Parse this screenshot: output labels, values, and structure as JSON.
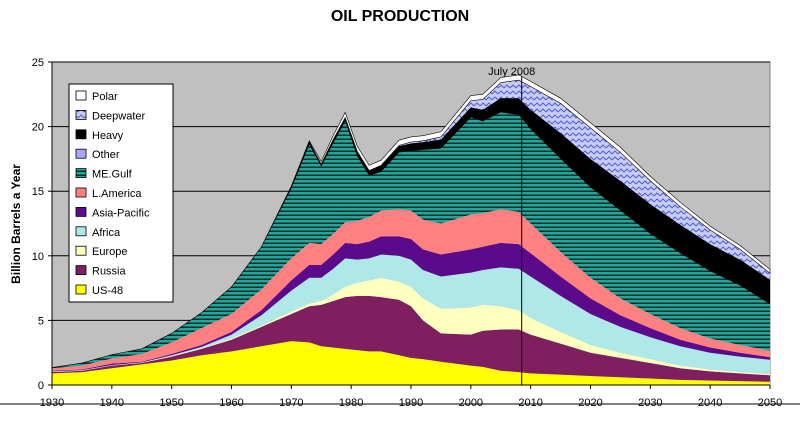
{
  "chart_data": {
    "type": "area",
    "title": "OIL PRODUCTION",
    "xlabel": "",
    "ylabel": "Billion Barrels a Year",
    "xlim": [
      1930,
      2050
    ],
    "ylim": [
      0,
      25
    ],
    "x_ticks": [
      1930,
      1940,
      1950,
      1960,
      1970,
      1980,
      1990,
      2000,
      2010,
      2020,
      2030,
      2040,
      2050
    ],
    "y_ticks": [
      0,
      5,
      10,
      15,
      20,
      25
    ],
    "grid": true,
    "stacked": true,
    "legend_position": "top-left",
    "annotation": {
      "label": "July 2008",
      "x": 2008.5
    },
    "x": [
      1930,
      1935,
      1940,
      1945,
      1950,
      1955,
      1960,
      1965,
      1970,
      1973,
      1975,
      1977,
      1979,
      1981,
      1983,
      1985,
      1988,
      1990,
      1992,
      1995,
      2000,
      2002,
      2005,
      2008,
      2010,
      2015,
      2020,
      2025,
      2030,
      2035,
      2040,
      2045,
      2050
    ],
    "series": [
      {
        "name": "US-48",
        "color": "#ffff00",
        "pattern": "solid",
        "values": [
          0.9,
          1.0,
          1.3,
          1.6,
          1.9,
          2.3,
          2.6,
          3.0,
          3.4,
          3.3,
          3.0,
          2.9,
          2.8,
          2.7,
          2.6,
          2.6,
          2.3,
          2.1,
          2.0,
          1.8,
          1.5,
          1.4,
          1.1,
          1.0,
          0.9,
          0.8,
          0.7,
          0.6,
          0.5,
          0.4,
          0.35,
          0.3,
          0.25
        ]
      },
      {
        "name": "Russia",
        "color": "#7f1f5f",
        "pattern": "solid",
        "values": [
          0.1,
          0.1,
          0.2,
          0.1,
          0.3,
          0.5,
          0.9,
          1.5,
          2.1,
          2.8,
          3.2,
          3.6,
          4.0,
          4.2,
          4.3,
          4.2,
          4.3,
          4.0,
          3.0,
          2.2,
          2.4,
          2.8,
          3.2,
          3.3,
          3.0,
          2.4,
          1.8,
          1.5,
          1.2,
          0.9,
          0.7,
          0.6,
          0.5
        ]
      },
      {
        "name": "Europe",
        "color": "#ffffc0",
        "pattern": "solid",
        "values": [
          0.0,
          0.0,
          0.0,
          0.0,
          0.05,
          0.05,
          0.1,
          0.1,
          0.2,
          0.2,
          0.3,
          0.5,
          0.8,
          1.0,
          1.2,
          1.5,
          1.4,
          1.5,
          1.7,
          1.9,
          2.1,
          2.0,
          1.8,
          1.5,
          1.3,
          0.9,
          0.6,
          0.4,
          0.3,
          0.2,
          0.15,
          0.1,
          0.1
        ]
      },
      {
        "name": "Africa",
        "color": "#aee8e8",
        "pattern": "solid",
        "values": [
          0.05,
          0.05,
          0.05,
          0.05,
          0.05,
          0.1,
          0.3,
          0.8,
          1.6,
          2.0,
          1.8,
          2.0,
          2.2,
          1.8,
          1.7,
          1.8,
          2.0,
          2.1,
          2.2,
          2.5,
          2.7,
          2.7,
          3.0,
          3.2,
          3.2,
          2.8,
          2.4,
          2.0,
          1.7,
          1.5,
          1.3,
          1.2,
          1.1
        ]
      },
      {
        "name": "Asia-Pacific",
        "color": "#5a0a8a",
        "pattern": "solid",
        "values": [
          0.05,
          0.05,
          0.1,
          0.05,
          0.1,
          0.15,
          0.2,
          0.4,
          0.8,
          1.0,
          1.0,
          1.1,
          1.2,
          1.2,
          1.3,
          1.4,
          1.5,
          1.6,
          1.6,
          1.7,
          1.8,
          1.8,
          1.9,
          1.9,
          1.8,
          1.5,
          1.2,
          0.9,
          0.7,
          0.5,
          0.4,
          0.3,
          0.2
        ]
      },
      {
        "name": "L.America",
        "color": "#ff8080",
        "pattern": "solid",
        "values": [
          0.2,
          0.3,
          0.4,
          0.6,
          0.9,
          1.3,
          1.4,
          1.6,
          1.7,
          1.7,
          1.6,
          1.6,
          1.6,
          1.8,
          1.9,
          2.0,
          2.1,
          2.2,
          2.3,
          2.4,
          2.7,
          2.6,
          2.6,
          2.5,
          2.3,
          1.9,
          1.6,
          1.3,
          1.1,
          0.9,
          0.7,
          0.6,
          0.5
        ]
      },
      {
        "name": "ME.Gulf",
        "color": "#1fa89a",
        "pattern": "stripes",
        "values": [
          0.05,
          0.2,
          0.3,
          0.4,
          0.7,
          1.2,
          2.1,
          3.3,
          5.4,
          7.6,
          6.0,
          7.0,
          7.8,
          5.0,
          3.2,
          3.0,
          4.4,
          4.6,
          5.4,
          5.8,
          7.5,
          7.1,
          7.5,
          7.5,
          7.3,
          7.2,
          7.0,
          6.8,
          6.2,
          5.8,
          5.2,
          4.6,
          3.6
        ]
      },
      {
        "name": "Other",
        "color": "#a8a8ff",
        "pattern": "solid",
        "values": [
          0.0,
          0.0,
          0.0,
          0.0,
          0.0,
          0.0,
          0.0,
          0.0,
          0.0,
          0.0,
          0.0,
          0.0,
          0.0,
          0.0,
          0.0,
          0.0,
          0.0,
          0.0,
          0.0,
          0.0,
          0.0,
          0.0,
          0.0,
          0.0,
          0.0,
          0.0,
          0.0,
          0.0,
          0.0,
          0.0,
          0.0,
          0.0,
          0.0
        ]
      },
      {
        "name": "Heavy",
        "color": "#000000",
        "pattern": "solid",
        "values": [
          0.0,
          0.0,
          0.0,
          0.0,
          0.0,
          0.0,
          0.0,
          0.0,
          0.1,
          0.2,
          0.2,
          0.3,
          0.3,
          0.4,
          0.4,
          0.5,
          0.5,
          0.6,
          0.6,
          0.7,
          0.8,
          0.9,
          1.1,
          1.3,
          1.5,
          2.0,
          2.2,
          2.3,
          2.3,
          2.2,
          2.1,
          2.0,
          1.9
        ]
      },
      {
        "name": "Deepwater",
        "color": "#b0b8f0",
        "pattern": "zigzag",
        "values": [
          0.0,
          0.0,
          0.0,
          0.0,
          0.0,
          0.0,
          0.0,
          0.0,
          0.0,
          0.0,
          0.0,
          0.0,
          0.0,
          0.0,
          0.0,
          0.0,
          0.05,
          0.1,
          0.1,
          0.2,
          0.5,
          0.8,
          1.2,
          1.4,
          1.8,
          2.3,
          2.4,
          2.2,
          1.8,
          1.4,
          1.1,
          0.8,
          0.5
        ]
      },
      {
        "name": "Polar",
        "color": "#ffffff",
        "pattern": "solid",
        "values": [
          0.0,
          0.0,
          0.0,
          0.0,
          0.0,
          0.0,
          0.0,
          0.0,
          0.1,
          0.1,
          0.2,
          0.3,
          0.4,
          0.4,
          0.4,
          0.4,
          0.4,
          0.4,
          0.4,
          0.4,
          0.4,
          0.4,
          0.4,
          0.4,
          0.4,
          0.4,
          0.4,
          0.4,
          0.35,
          0.35,
          0.3,
          0.3,
          0.3
        ]
      }
    ],
    "legend_order": [
      "Polar",
      "Deepwater",
      "Heavy",
      "Other",
      "ME.Gulf",
      "L.America",
      "Asia-Pacific",
      "Africa",
      "Europe",
      "Russia",
      "US-48"
    ]
  }
}
